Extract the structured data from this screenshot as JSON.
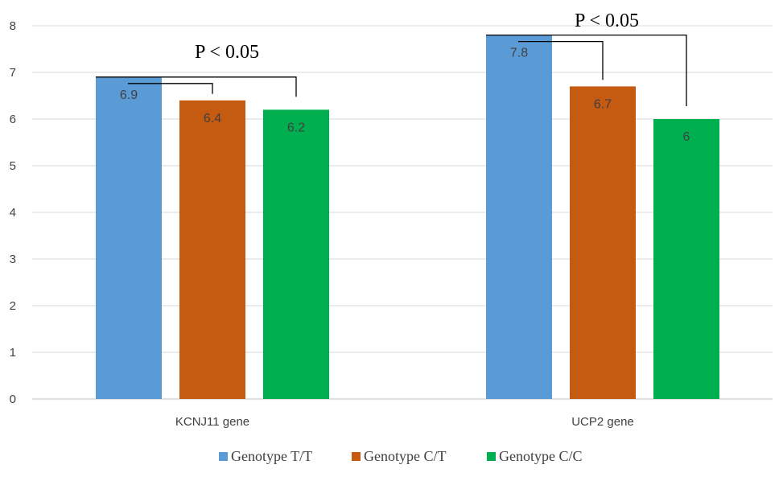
{
  "chart_data": {
    "type": "bar",
    "categories": [
      "KCNJ11 gene",
      "UCP2 gene"
    ],
    "series": [
      {
        "name": "Genotype T/T",
        "values": [
          6.9,
          7.8
        ],
        "color": "#5b9bd5"
      },
      {
        "name": "Genotype C/T",
        "values": [
          6.4,
          6.7
        ],
        "color": "#c55a11"
      },
      {
        "name": "Genotype C/C",
        "values": [
          6.2,
          6
        ],
        "color": "#00b050"
      }
    ],
    "data_labels": [
      [
        "6.9",
        "6.4",
        "6.2"
      ],
      [
        "7.8",
        "6.7",
        "6"
      ]
    ],
    "y_ticks": [
      "0",
      "1",
      "2",
      "3",
      "4",
      "5",
      "6",
      "7",
      "8"
    ],
    "ylim": [
      0,
      8
    ],
    "grid": true,
    "legend_position": "bottom",
    "annotations": [
      "P < 0.05",
      "P < 0.05"
    ],
    "title": "",
    "xlabel": "",
    "ylabel": ""
  }
}
